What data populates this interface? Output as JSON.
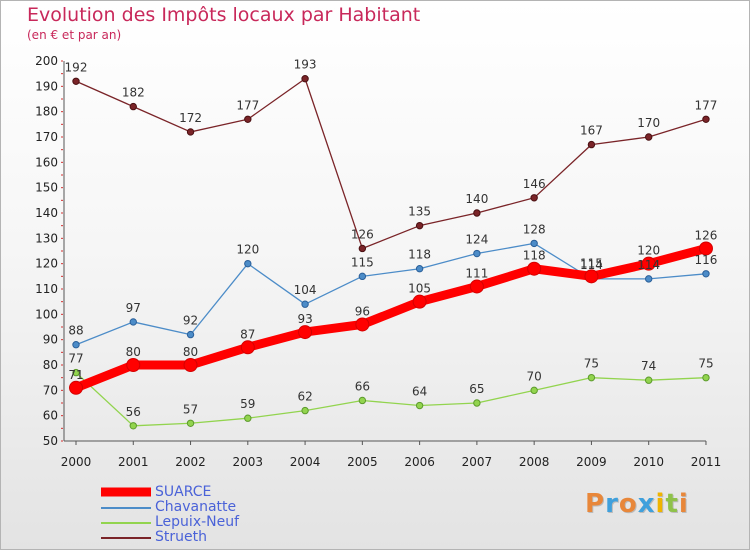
{
  "title": "Evolution des Impôts locaux par Habitant",
  "subtitle": "(en € et par an)",
  "logo": {
    "text": "Proxiti",
    "letters": [
      {
        "char": "P",
        "color": "#e8873a"
      },
      {
        "char": "r",
        "color": "#3fa0dc"
      },
      {
        "char": "o",
        "color": "#e8873a"
      },
      {
        "char": "x",
        "color": "#3fa0dc"
      },
      {
        "char": "i",
        "color": "#f0b400"
      },
      {
        "char": "t",
        "color": "#8fc24a"
      },
      {
        "char": "i",
        "color": "#e8873a"
      }
    ]
  },
  "chart_data": {
    "type": "line",
    "title": "Evolution des Impôts locaux par Habitant",
    "subtitle": "(en € et par an)",
    "xlabel": "",
    "ylabel": "",
    "ylim": [
      50,
      200
    ],
    "yticks": [
      50,
      60,
      70,
      80,
      90,
      100,
      110,
      120,
      130,
      140,
      150,
      160,
      170,
      180,
      190,
      200
    ],
    "grid": false,
    "legend_position": "bottom-left",
    "categories": [
      "2000",
      "2001",
      "2002",
      "2003",
      "2004",
      "2005",
      "2006",
      "2007",
      "2008",
      "2009",
      "2010",
      "2011"
    ],
    "series": [
      {
        "name": "SUARCE",
        "color": "#ff0000",
        "values": [
          71,
          80,
          80,
          87,
          93,
          96,
          105,
          111,
          118,
          115,
          120,
          126
        ]
      },
      {
        "name": "Chavanatte",
        "color": "#4c8cc8",
        "values": [
          88,
          97,
          92,
          120,
          104,
          115,
          118,
          124,
          128,
          114,
          114,
          116
        ]
      },
      {
        "name": "Lepuix-Neuf",
        "color": "#92d44e",
        "values": [
          77,
          56,
          57,
          59,
          62,
          66,
          64,
          65,
          70,
          75,
          74,
          75
        ]
      },
      {
        "name": "Strueth",
        "color": "#7a2428",
        "values": [
          192,
          182,
          172,
          177,
          193,
          126,
          135,
          140,
          146,
          167,
          170,
          177
        ]
      }
    ]
  }
}
